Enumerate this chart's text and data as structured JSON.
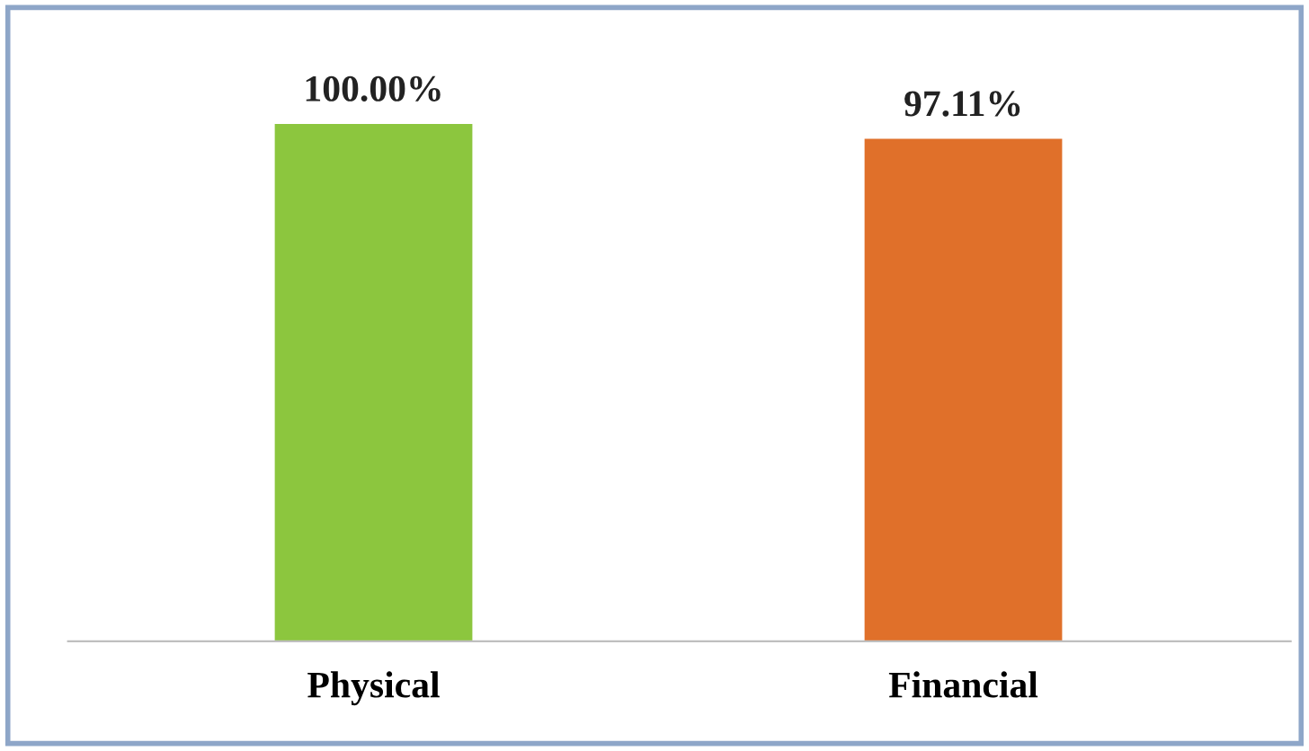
{
  "chart_data": {
    "type": "bar",
    "categories": [
      "Physical",
      "Financial"
    ],
    "values": [
      100,
      97.11
    ],
    "colors": [
      "#8cc63e",
      "#e0702a"
    ],
    "value_labels": [
      "100.00%",
      "97.11%"
    ],
    "tick_labels": "x",
    "grid": false,
    "legend": false
  }
}
